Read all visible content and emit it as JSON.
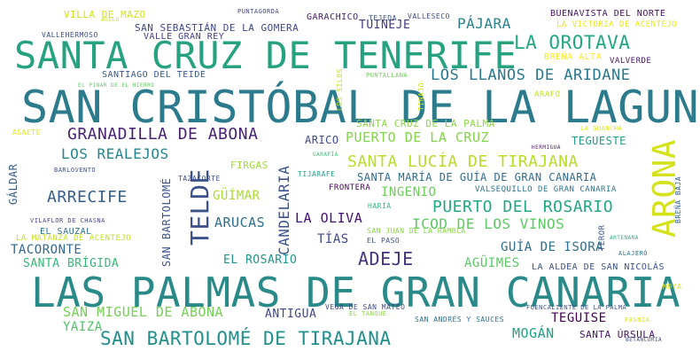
{
  "words": [
    {
      "text": "LAS PALMAS DE GRAN CANARIA",
      "color": "#2a8a89"
    },
    {
      "text": "SAN CRISTÓBAL DE LA LAGUNA",
      "color": "#2c7b8c"
    },
    {
      "text": "SANTA CRUZ DE TENERIFE",
      "color": "#27a281"
    },
    {
      "text": "ARONA",
      "color": "#d5e21b"
    },
    {
      "text": "TELDE",
      "color": "#3b518a"
    },
    {
      "text": "SAN BARTOLOMÉ DE TIRAJANA",
      "color": "#218f8c"
    },
    {
      "text": "ADEJE",
      "color": "#46337e"
    },
    {
      "text": "LA OROTAVA",
      "color": "#23a883"
    },
    {
      "text": "GRANADILLA DE ABONA",
      "color": "#482374"
    },
    {
      "text": "SANTA LUCÍA DE TIRAJANA",
      "color": "#b5de2b"
    },
    {
      "text": "ARRECIFE",
      "color": "#355f8d"
    },
    {
      "text": "LOS LLANOS DE ARIDANE",
      "color": "#2a788e"
    },
    {
      "text": "PUERTO DEL ROSARIO",
      "color": "#22a884"
    },
    {
      "text": "CANDELARIA",
      "color": "#3a548c"
    },
    {
      "text": "LOS REALEJOS",
      "color": "#25858e"
    },
    {
      "text": "ICOD DE LOS VINOS",
      "color": "#5ec962"
    },
    {
      "text": "SAN MIGUEL DE ABONA",
      "color": "#74d055"
    },
    {
      "text": "PUERTO DE LA CRUZ",
      "color": "#84d44b"
    },
    {
      "text": "ARUCAS",
      "color": "#2c718e"
    },
    {
      "text": "LA OLIVA",
      "color": "#440f76"
    },
    {
      "text": "MOGÁN",
      "color": "#1fa287"
    },
    {
      "text": "PÁJARA",
      "color": "#26828e"
    },
    {
      "text": "YAIZA",
      "color": "#52c569"
    },
    {
      "text": "TACORONTE",
      "color": "#31688e"
    },
    {
      "text": "GÜÍMAR",
      "color": "#a8db34"
    },
    {
      "text": "SAN BARTOLOMÉ",
      "color": "#3a548c"
    },
    {
      "text": "INGENIO",
      "color": "#6ccd5a"
    },
    {
      "text": "GUÍA DE ISORA",
      "color": "#2e6f8e"
    },
    {
      "text": "SANTA BRÍGIDA",
      "color": "#37b878"
    },
    {
      "text": "AGÜIMES",
      "color": "#5cc863"
    },
    {
      "text": "EL ROSARIO",
      "color": "#1f958b"
    },
    {
      "text": "TÍAS",
      "color": "#3e4c8a"
    },
    {
      "text": "TUINEJE",
      "color": "#443983"
    },
    {
      "text": "ANTIGUA",
      "color": "#3f4889"
    },
    {
      "text": "TEGUISE",
      "color": "#440154"
    },
    {
      "text": "SANTA MARÍA DE GUÍA DE GRAN CANARIA",
      "color": "#2f6c8e"
    },
    {
      "text": "GÁLDAR",
      "color": "#355e8d"
    },
    {
      "text": "TEGUESTE",
      "color": "#1f9e89"
    },
    {
      "text": "ARICO",
      "color": "#3e4a89"
    },
    {
      "text": "SANTA ÚRSULA",
      "color": "#471365"
    },
    {
      "text": "SAN SEBASTIÁN DE LA GOMERA",
      "color": "#3f4788"
    },
    {
      "text": "VILLA DE MAZO",
      "color": "#d2e21b"
    },
    {
      "text": "SANTA CRUZ DE LA PALMA",
      "color": "#8ed645"
    },
    {
      "text": "BUENAVISTA DEL NORTE",
      "color": "#471063"
    },
    {
      "text": "FIRGAS",
      "color": "#a0da39"
    },
    {
      "text": "LA ALDEA DE SAN NICOLÁS",
      "color": "#3b528b"
    },
    {
      "text": "EL SAUZAL",
      "color": "#2d708e"
    },
    {
      "text": "VALLE GRAN REY",
      "color": "#443a83"
    },
    {
      "text": "SANTIAGO DEL TEIDE",
      "color": "#38598c"
    },
    {
      "text": "LA MATANZA DE ACENTEJO",
      "color": "#c2df23"
    },
    {
      "text": "LA VICTORIA DE ACENTEJO",
      "color": "#eae51a"
    },
    {
      "text": "GARACHICO",
      "color": "#481d6f"
    },
    {
      "text": "BREÑA ALTA",
      "color": "#fde725"
    },
    {
      "text": "VALVERDE",
      "color": "#471365"
    },
    {
      "text": "VALLEHERMOSO",
      "color": "#3d4d8a"
    },
    {
      "text": "TEJEDA",
      "color": "#3b528b"
    },
    {
      "text": "VALLESECO",
      "color": "#3d4e8a"
    },
    {
      "text": "PUNTAGORDA",
      "color": "#404588"
    },
    {
      "text": "AGULO",
      "color": "#c5e021"
    },
    {
      "text": "PUNTALLANA",
      "color": "#6ece58"
    },
    {
      "text": "TIJARAFE",
      "color": "#1fa088"
    },
    {
      "text": "TAZACORTE",
      "color": "#3d4e8a"
    },
    {
      "text": "FRONTERA",
      "color": "#450559"
    },
    {
      "text": "HARÍA",
      "color": "#32b67a"
    },
    {
      "text": "SAN JUAN DE LA RAMBLA",
      "color": "#8bd646"
    },
    {
      "text": "EL PASO",
      "color": "#3b528b"
    },
    {
      "text": "VALSEQUILLO DE GRAN CANARIA",
      "color": "#2c738e"
    },
    {
      "text": "TEROR",
      "color": "#3a548c"
    },
    {
      "text": "BREÑA BAJA",
      "color": "#355f8d"
    },
    {
      "text": "ARTENARA",
      "color": "#29af7f"
    },
    {
      "text": "ALAJERÓ",
      "color": "#2a768e"
    },
    {
      "text": "MOYA",
      "color": "#dde318"
    },
    {
      "text": "FUENCALIENTE DE LA PALMA",
      "color": "#3b528b"
    },
    {
      "text": "FASNIA",
      "color": "#dae319"
    },
    {
      "text": "BETANCURIA",
      "color": "#3b528b"
    },
    {
      "text": "SAN ANDRÉS Y SAUCES",
      "color": "#2c738e"
    },
    {
      "text": "EL TANQUE",
      "color": "#8bd646"
    },
    {
      "text": "VEGA DE SAN MATEO",
      "color": "#3e4a89"
    },
    {
      "text": "VILAFLOR DE CHASNA",
      "color": "#404688"
    },
    {
      "text": "BARLOVENTO",
      "color": "#3c4f8a"
    },
    {
      "text": "EL PINAR DE EL HIERRO",
      "color": "#5ec962"
    },
    {
      "text": "AGAETE",
      "color": "#e7e419"
    },
    {
      "text": "LOS SILOS",
      "color": "#b8de29"
    },
    {
      "text": "TINAJO",
      "color": "#d8e219"
    },
    {
      "text": "ARAFO",
      "color": "#c0df25"
    },
    {
      "text": "LA GUANCHA",
      "color": "#e2e418"
    },
    {
      "text": "HERMIGUA",
      "color": "#481a6c"
    },
    {
      "text": "GARAFÍA",
      "color": "#3dbc74"
    }
  ]
}
